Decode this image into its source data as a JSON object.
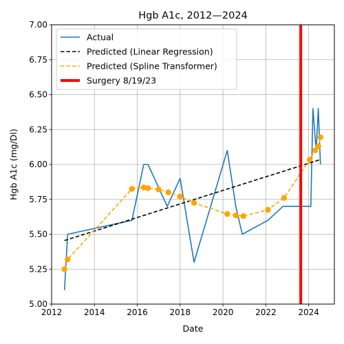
{
  "chart_data": {
    "type": "line",
    "title": "Hgb A1c, 2012—2024",
    "xlabel": "Date",
    "ylabel": "Hgb A1c (mg/Dl)",
    "xlim": [
      2012.0,
      2025.2
    ],
    "ylim": [
      5.0,
      7.0
    ],
    "x_ticks": [
      2012,
      2014,
      2016,
      2018,
      2020,
      2022,
      2024
    ],
    "x_tick_labels": [
      "2012",
      "2014",
      "2016",
      "2018",
      "2020",
      "2022",
      "2024"
    ],
    "y_ticks": [
      5.0,
      5.25,
      5.5,
      5.75,
      6.0,
      6.25,
      6.5,
      6.75,
      7.0
    ],
    "y_tick_labels": [
      "5.00",
      "5.25",
      "5.50",
      "5.75",
      "6.00",
      "6.25",
      "6.50",
      "6.75",
      "7.00"
    ],
    "grid": true,
    "legend_position": "top-left",
    "series": [
      {
        "name": "Actual",
        "color": "#1f77b4",
        "style": "solid",
        "x": [
          2012.6,
          2012.75,
          2015.75,
          2016.3,
          2016.5,
          2017.4,
          2018.0,
          2018.65,
          2020.2,
          2020.6,
          2020.9,
          2022.1,
          2022.8,
          2024.1,
          2024.2,
          2024.35,
          2024.45,
          2024.55
        ],
        "y": [
          5.1,
          5.5,
          5.6,
          6.0,
          6.0,
          5.7,
          5.9,
          5.3,
          6.1,
          5.7,
          5.5,
          5.6,
          5.7,
          5.7,
          6.4,
          6.1,
          6.4,
          6.0
        ]
      },
      {
        "name": "Predicted (Linear Regression)",
        "color": "#000000",
        "style": "dashed",
        "x": [
          2012.6,
          2024.55
        ],
        "y": [
          5.455,
          6.035
        ]
      },
      {
        "name": "Predicted (Spline Transformer)",
        "color": "#ffa500",
        "style": "dashed",
        "markers": true,
        "x": [
          2012.6,
          2012.75,
          2015.75,
          2016.3,
          2016.5,
          2017.0,
          2017.45,
          2018.0,
          2018.65,
          2020.2,
          2020.6,
          2020.95,
          2022.1,
          2022.85,
          2024.05,
          2024.3,
          2024.45,
          2024.55
        ],
        "y": [
          5.25,
          5.32,
          5.825,
          5.835,
          5.83,
          5.82,
          5.8,
          5.77,
          5.725,
          5.645,
          5.635,
          5.63,
          5.675,
          5.76,
          6.035,
          6.1,
          6.13,
          6.195
        ]
      }
    ],
    "vline": {
      "name": "Surgery 8/19/23",
      "x": 2023.63,
      "color": "#ff0000"
    }
  }
}
